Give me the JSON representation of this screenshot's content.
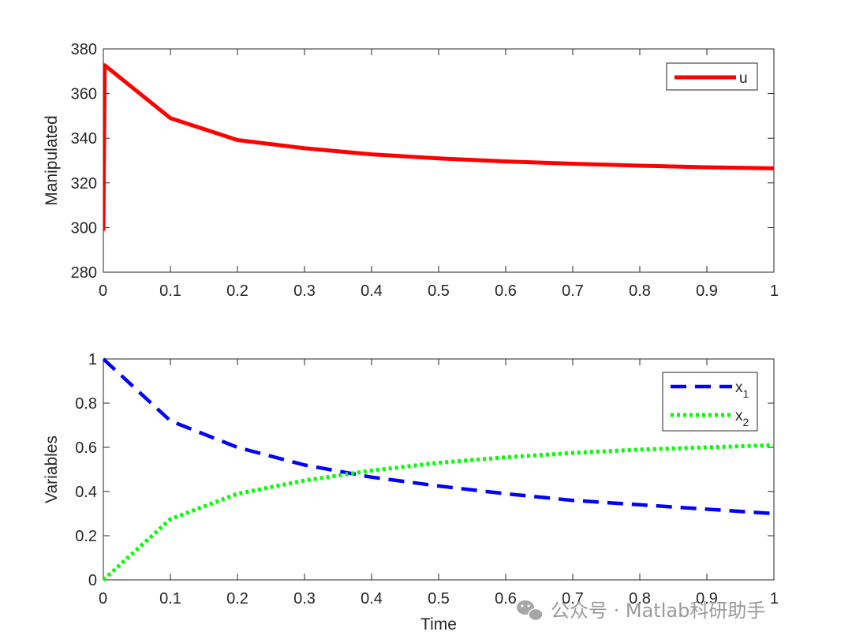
{
  "watermark": {
    "text": "公众号 · Matlab科研助手",
    "icon": "wechat-icon"
  },
  "chart_data": [
    {
      "type": "line",
      "ylabel": "Manipulated",
      "xlabel": "",
      "xlim": [
        0,
        1
      ],
      "ylim": [
        280,
        380
      ],
      "xticks": [
        0,
        0.1,
        0.2,
        0.3,
        0.4,
        0.5,
        0.6,
        0.7,
        0.8,
        0.9,
        1
      ],
      "xtick_labels": [
        "0",
        "0.1",
        "0.2",
        "0.3",
        "0.4",
        "0.5",
        "0.6",
        "0.7",
        "0.8",
        "0.9",
        "1"
      ],
      "yticks": [
        280,
        300,
        320,
        340,
        360,
        380
      ],
      "ytick_labels": [
        "280",
        "300",
        "320",
        "340",
        "360",
        "380"
      ],
      "grid": false,
      "legend_position": "top-right",
      "series": [
        {
          "name": "u",
          "color": "#ff0000",
          "style": "solid",
          "x": [
            0,
            0.002,
            0.1,
            0.2,
            0.3,
            0.4,
            0.5,
            0.6,
            0.7,
            0.8,
            0.9,
            1.0
          ],
          "y": [
            298.5,
            372.7,
            349.0,
            339.2,
            335.5,
            332.8,
            331.0,
            329.6,
            328.6,
            327.7,
            327.0,
            326.5
          ]
        }
      ]
    },
    {
      "type": "line",
      "ylabel": "Variables",
      "xlabel": "Time",
      "xlim": [
        0,
        1
      ],
      "ylim": [
        0,
        1
      ],
      "xticks": [
        0,
        0.1,
        0.2,
        0.3,
        0.4,
        0.5,
        0.6,
        0.7,
        0.8,
        0.9,
        1
      ],
      "xtick_labels": [
        "0",
        "0.1",
        "0.2",
        "0.3",
        "0.4",
        "0.5",
        "0.6",
        "0.7",
        "0.8",
        "0.9",
        "1"
      ],
      "yticks": [
        0,
        0.2,
        0.4,
        0.6,
        0.8,
        1
      ],
      "ytick_labels": [
        "0",
        "0.2",
        "0.4",
        "0.6",
        "0.8",
        "1"
      ],
      "grid": false,
      "legend_position": "top-right",
      "series": [
        {
          "name": "x",
          "subscript": "1",
          "color": "#0000ff",
          "style": "dashed",
          "x": [
            0,
            0.1,
            0.2,
            0.3,
            0.4,
            0.5,
            0.6,
            0.7,
            0.8,
            0.9,
            1.0
          ],
          "y": [
            1.0,
            0.72,
            0.6,
            0.52,
            0.465,
            0.425,
            0.39,
            0.36,
            0.34,
            0.32,
            0.3
          ]
        },
        {
          "name": "x",
          "subscript": "2",
          "color": "#00ff00",
          "style": "dotted",
          "x": [
            0,
            0.1,
            0.2,
            0.3,
            0.4,
            0.5,
            0.6,
            0.7,
            0.8,
            0.9,
            1.0
          ],
          "y": [
            0.0,
            0.275,
            0.39,
            0.45,
            0.495,
            0.53,
            0.555,
            0.575,
            0.59,
            0.6,
            0.61
          ]
        }
      ]
    }
  ]
}
